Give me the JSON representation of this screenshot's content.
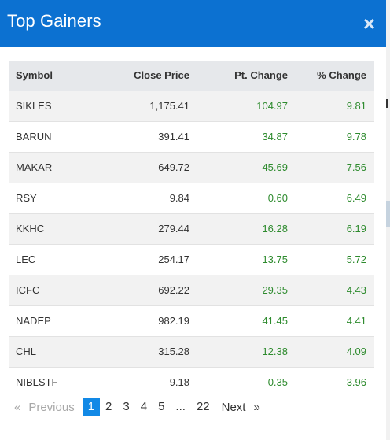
{
  "modal": {
    "title": "Top Gainers",
    "close_label": "×"
  },
  "table": {
    "columns": [
      "Symbol",
      "Close Price",
      "Pt. Change",
      "% Change"
    ],
    "rows": [
      [
        "SIKLES",
        "1,175.41",
        "104.97",
        "9.81"
      ],
      [
        "BARUN",
        "391.41",
        "34.87",
        "9.78"
      ],
      [
        "MAKAR",
        "649.72",
        "45.69",
        "7.56"
      ],
      [
        "RSY",
        "9.84",
        "0.60",
        "6.49"
      ],
      [
        "KKHC",
        "279.44",
        "16.28",
        "6.19"
      ],
      [
        "LEC",
        "254.17",
        "13.75",
        "5.72"
      ],
      [
        "ICFC",
        "692.22",
        "29.35",
        "4.43"
      ],
      [
        "NADEP",
        "982.19",
        "41.45",
        "4.41"
      ],
      [
        "CHL",
        "315.28",
        "12.38",
        "4.09"
      ],
      [
        "NIBLSTF",
        "9.18",
        "0.35",
        "3.96"
      ]
    ]
  },
  "pagination": {
    "prev_arrow": "«",
    "prev_label": "Previous",
    "pages": [
      "1",
      "2",
      "3",
      "4",
      "5"
    ],
    "active": "1",
    "ellipsis": "...",
    "last": "22",
    "next_label": "Next",
    "next_arrow": "»"
  },
  "colors": {
    "header": "#0c71d1",
    "positive": "#2e8b2e",
    "active_page": "#1289e6"
  }
}
